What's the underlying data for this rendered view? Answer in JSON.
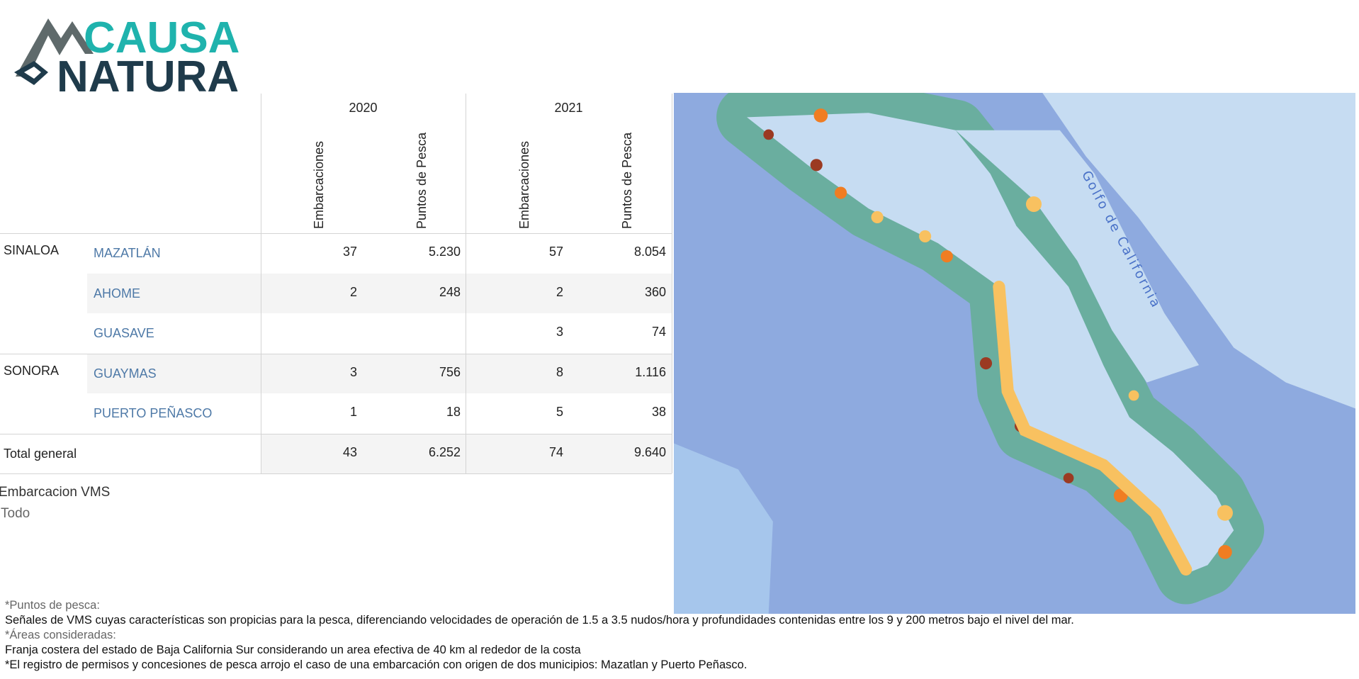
{
  "logo": {
    "line1": "CAUSA",
    "line2": "NATURA"
  },
  "table": {
    "years": [
      "2020",
      "2021"
    ],
    "columns": [
      "Embarcaciones",
      "Puntos de Pesca",
      "Embarcaciones",
      "Puntos de Pesca"
    ],
    "rows": [
      {
        "state": "SINALOA",
        "municipality": "MAZATLÁN",
        "cells": [
          "37",
          "5.230",
          "57",
          "8.054"
        ]
      },
      {
        "state": null,
        "municipality": "AHOME",
        "cells": [
          "2",
          "248",
          "2",
          "360"
        ]
      },
      {
        "state": null,
        "municipality": "GUASAVE",
        "cells": [
          null,
          null,
          "3",
          "74"
        ]
      },
      {
        "state": "SONORA",
        "municipality": "GUAYMAS",
        "cells": [
          "3",
          "756",
          "8",
          "1.116"
        ]
      },
      {
        "state": null,
        "municipality": "PUERTO PEÑASCO",
        "cells": [
          "1",
          "18",
          "5",
          "38"
        ]
      }
    ],
    "total": {
      "label": "Total general",
      "cells": [
        "43",
        "6.252",
        "74",
        "9.640"
      ]
    }
  },
  "filter": {
    "label": "Embarcacion VMS",
    "value": "Todo"
  },
  "map": {
    "label": "Golfo de California"
  },
  "notes": [
    "*Puntos de pesca:",
    "Señales de VMS cuyas características son propicias para la pesca, diferenciando velocidades de operación de 1.5 a 3.5 nudos/hora y profundidades contenidas entre los 9 y 200 metros bajo el nivel del mar.",
    "*Áreas consideradas:",
    "Franja costera del estado de Baja California Sur considerando un area efectiva de 40 km al rededor de la costa",
    "*El registro de permisos y concesiones de pesca arrojo el caso de una embarcación con origen de dos municipios: Mazatlan y Puerto Peñasco."
  ]
}
